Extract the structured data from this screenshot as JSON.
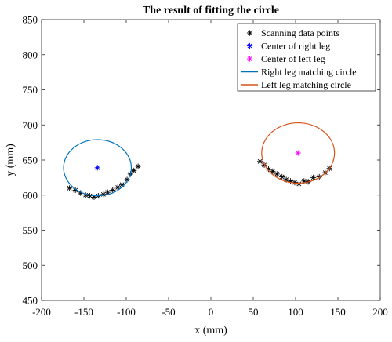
{
  "chart_data": {
    "type": "scatter",
    "title": "The result of fitting the circle",
    "xlabel": "x (mm)",
    "ylabel": "y (mm)",
    "xlim": [
      -200,
      200
    ],
    "ylim": [
      450,
      850
    ],
    "xticks": [
      -200,
      -150,
      -100,
      -50,
      0,
      50,
      100,
      150,
      200
    ],
    "yticks": [
      450,
      500,
      550,
      600,
      650,
      700,
      750,
      800,
      850
    ],
    "grid": false,
    "legend_position": "top-right",
    "series": [
      {
        "name": "Scanning data points",
        "kind": "scatter",
        "marker": "asterisk",
        "color": "#000000",
        "points": [
          [
            -167,
            610
          ],
          [
            -160,
            607
          ],
          [
            -154,
            603
          ],
          [
            -148,
            600
          ],
          [
            -143,
            599
          ],
          [
            -138,
            597
          ],
          [
            -133,
            599
          ],
          [
            -127,
            601
          ],
          [
            -122,
            604
          ],
          [
            -116,
            607
          ],
          [
            -110,
            611
          ],
          [
            -105,
            615
          ],
          [
            -99,
            622
          ],
          [
            -95,
            630
          ],
          [
            -91,
            635
          ],
          [
            -86,
            641
          ],
          [
            58,
            648
          ],
          [
            63,
            643
          ],
          [
            68,
            637
          ],
          [
            73,
            634
          ],
          [
            78,
            630
          ],
          [
            84,
            626
          ],
          [
            89,
            622
          ],
          [
            94,
            620
          ],
          [
            99,
            618
          ],
          [
            104,
            616
          ],
          [
            110,
            620
          ],
          [
            115,
            619
          ],
          [
            121,
            625
          ],
          [
            128,
            626
          ],
          [
            135,
            632
          ],
          [
            140,
            638
          ]
        ]
      },
      {
        "name": "Center of right leg",
        "kind": "scatter",
        "marker": "asterisk",
        "color": "#0000FF",
        "points": [
          [
            -134,
            639
          ]
        ]
      },
      {
        "name": "Center of left leg",
        "kind": "scatter",
        "marker": "asterisk",
        "color": "#FF00FF",
        "points": [
          [
            103,
            660
          ]
        ]
      },
      {
        "name": "Right leg matching circle",
        "kind": "circle",
        "color": "#0072BD",
        "center": [
          -134,
          639
        ],
        "radius": 40
      },
      {
        "name": "Left leg matching circle",
        "kind": "circle",
        "color": "#D95319",
        "center": [
          103,
          660
        ],
        "radius": 43
      }
    ]
  }
}
